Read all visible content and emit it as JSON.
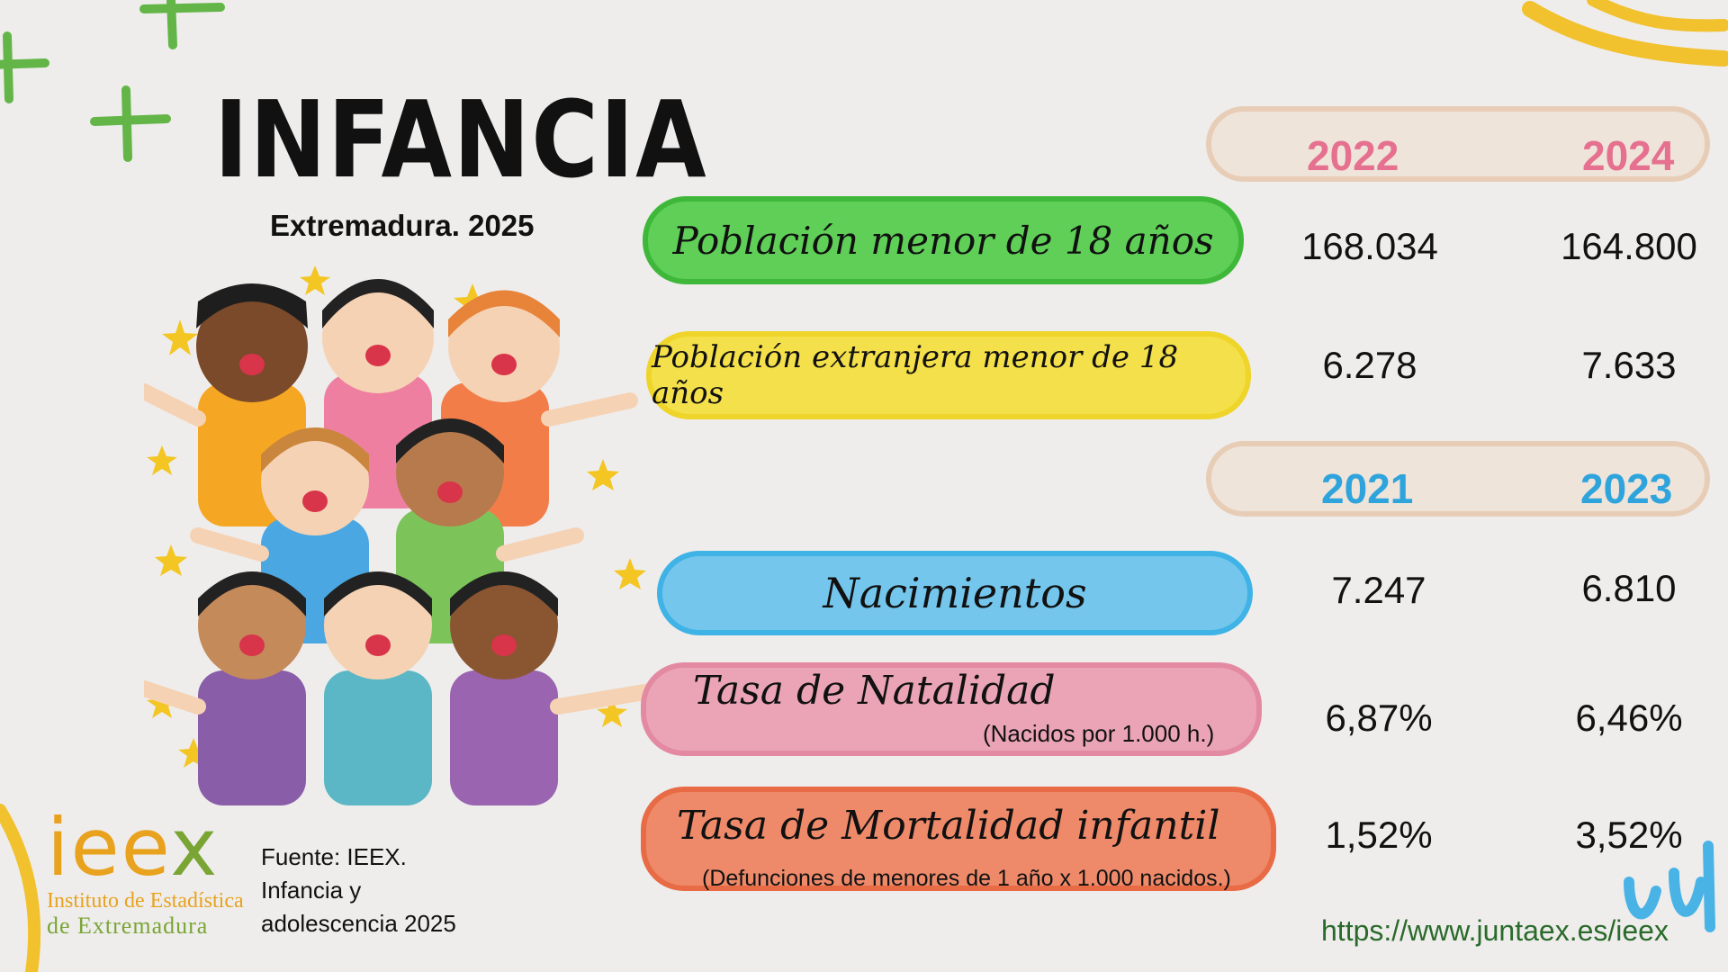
{
  "header": {
    "title": "INFANCIA",
    "subtitle": "Extremadura. 2025"
  },
  "colors": {
    "year_pink": "#e5708f",
    "year_blue": "#2fa4dc",
    "green": "#5fcf57",
    "yellow": "#f4e04a",
    "blue": "#74c6ec",
    "pink": "#eaa4b6",
    "orange": "#ee8a6a",
    "logo_orange": "#e8a21e",
    "logo_green": "#7aa535"
  },
  "population_years": [
    "2022",
    "2024"
  ],
  "birth_years": [
    "2021",
    "2023"
  ],
  "rows": [
    {
      "label": "Población menor de 18 años",
      "note": "",
      "v1": "168.034",
      "v2": "164.800"
    },
    {
      "label": "Población extranjera menor de 18 años",
      "note": "",
      "v1": "6.278",
      "v2": "7.633"
    },
    {
      "label": "Nacimientos",
      "note": "",
      "v1": "7.247",
      "v2": "6.810"
    },
    {
      "label": "Tasa de Natalidad",
      "note": "(Nacidos por 1.000 h.)",
      "v1": "6,87%",
      "v2": "6,46%"
    },
    {
      "label": "Tasa de Mortalidad infantil",
      "note": "(Defunciones de menores de 1 año x 1.000 nacidos.)",
      "v1": "1,52%",
      "v2": "3,52%"
    }
  ],
  "logo": {
    "word_a": "iee",
    "word_b": "x",
    "line1": "Instituto de Estadística",
    "line2": "de Extremadura"
  },
  "source": "Fuente: IEEX. Infancia y adolescencia 2025",
  "url": "https://www.juntaex.es/ieex",
  "illustration": {
    "name": "group-of-children-illustration"
  }
}
